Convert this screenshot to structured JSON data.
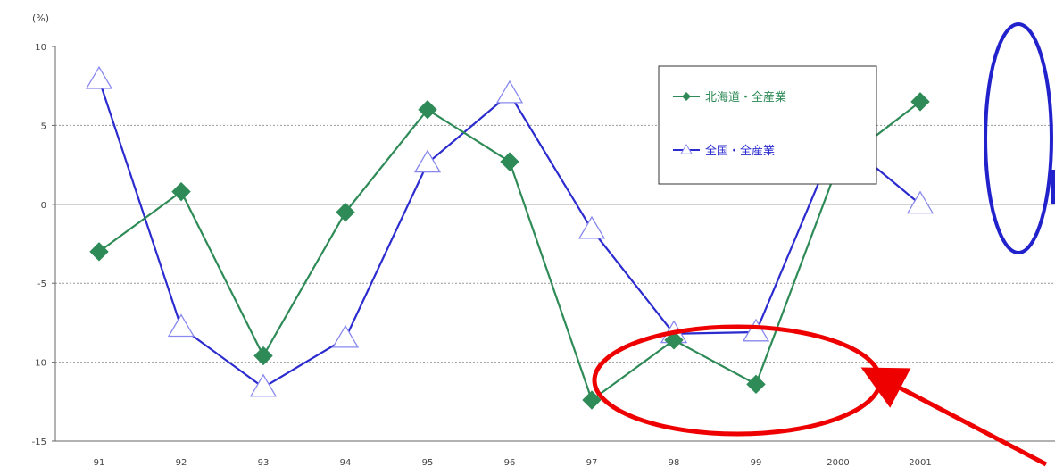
{
  "chart_data": {
    "type": "line",
    "unit_label": "(%)",
    "categories": [
      "91",
      "92",
      "93",
      "94",
      "95",
      "96",
      "97",
      "98",
      "99",
      "2000",
      "2001"
    ],
    "ylim": [
      -15,
      10
    ],
    "yticks": [
      10,
      5,
      0,
      -5,
      -10,
      -15
    ],
    "grid": true,
    "legend_position": "top-right",
    "series": [
      {
        "name": "北海道・全産業",
        "color": "#2e8b57",
        "marker": "diamond",
        "values": [
          -3.0,
          0.8,
          -9.6,
          -0.5,
          6.0,
          2.7,
          -12.4,
          -8.6,
          -11.4,
          2.5,
          6.5
        ]
      },
      {
        "name": "全国・全産業",
        "color": "#2b2bcf",
        "marker": "triangle-open",
        "values": [
          7.9,
          -7.8,
          -11.6,
          -8.5,
          2.6,
          7.0,
          -1.6,
          -8.2,
          -8.1,
          4.3,
          0.0
        ]
      }
    ],
    "annotations": [
      {
        "shape": "ellipse",
        "color": "#2222cc",
        "target": "2001"
      },
      {
        "shape": "ellipse",
        "color": "#ee0000",
        "target": "97-99"
      },
      {
        "shape": "arrow",
        "color": "#ee0000",
        "target": "97-99"
      }
    ]
  }
}
